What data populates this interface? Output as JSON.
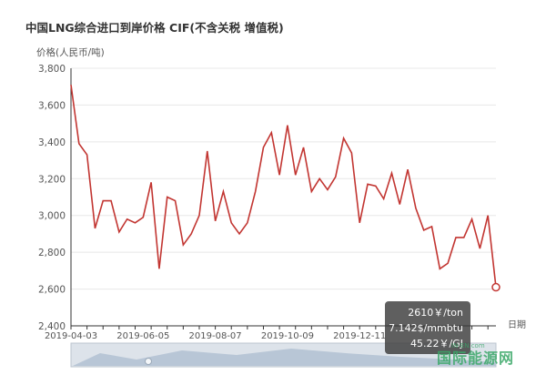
{
  "chart_data": {
    "type": "line",
    "title": "中国LNG综合进口到岸价格  CIF(不含关税  增值税)",
    "ylabel": "价格(人民币/吨)",
    "xlabel": "日期",
    "ylim": [
      2400,
      3800
    ],
    "yticks": [
      "2,400",
      "2,600",
      "2,800",
      "3,000",
      "3,200",
      "3,400",
      "3,600",
      "3,800"
    ],
    "xticks": [
      "2019-04-03",
      "2019-06-05",
      "2019-08-07",
      "2019-10-09",
      "2019-12-11"
    ],
    "series": [
      {
        "color": "#c23531",
        "values": [
          3710,
          3390,
          3330,
          2930,
          3080,
          3080,
          2910,
          2980,
          2960,
          2990,
          3180,
          2710,
          3100,
          3080,
          2840,
          2900,
          3000,
          3350,
          2970,
          3130,
          2960,
          2900,
          2960,
          3130,
          3370,
          3450,
          3220,
          3490,
          3220,
          3370,
          3130,
          3200,
          3140,
          3210,
          3420,
          3340,
          2960,
          3170,
          3160,
          3090,
          3230,
          3060,
          3250,
          3040,
          2920,
          2940,
          2710,
          2740,
          2880,
          2880,
          2980,
          2820,
          3000,
          2610
        ]
      }
    ]
  },
  "tooltip": {
    "line1": "2610￥/ton",
    "line2": "7.142$/mmbtu",
    "line3": "45.22￥/GJ"
  },
  "watermark": {
    "text": "国际能源网",
    "small": "IN-EN.com"
  }
}
